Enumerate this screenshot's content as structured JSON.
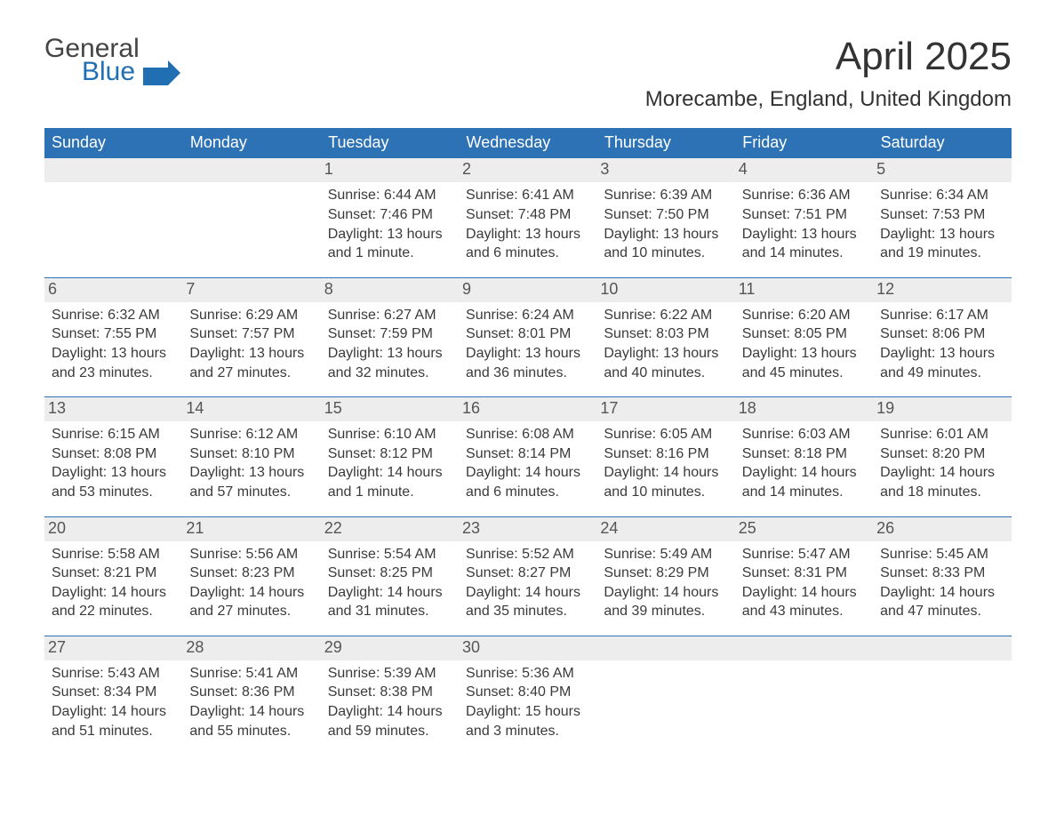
{
  "brand": {
    "word1": "General",
    "word2": "Blue",
    "color_primary": "#1f6fb2",
    "color_text": "#444"
  },
  "title": "April 2025",
  "location": "Morecambe, England, United Kingdom",
  "header_bg": "#2d72b5",
  "header_fg": "#ffffff",
  "daybar_bg": "#ededed",
  "border_color": "#2d72b5",
  "page_bg": "#ffffff",
  "text_color": "#3a3a3a",
  "weekdays": [
    "Sunday",
    "Monday",
    "Tuesday",
    "Wednesday",
    "Thursday",
    "Friday",
    "Saturday"
  ],
  "weeks": [
    [
      {
        "day": "",
        "sunrise": "",
        "sunset": "",
        "daylight": ""
      },
      {
        "day": "",
        "sunrise": "",
        "sunset": "",
        "daylight": ""
      },
      {
        "day": "1",
        "sunrise": "Sunrise: 6:44 AM",
        "sunset": "Sunset: 7:46 PM",
        "daylight": "Daylight: 13 hours and 1 minute."
      },
      {
        "day": "2",
        "sunrise": "Sunrise: 6:41 AM",
        "sunset": "Sunset: 7:48 PM",
        "daylight": "Daylight: 13 hours and 6 minutes."
      },
      {
        "day": "3",
        "sunrise": "Sunrise: 6:39 AM",
        "sunset": "Sunset: 7:50 PM",
        "daylight": "Daylight: 13 hours and 10 minutes."
      },
      {
        "day": "4",
        "sunrise": "Sunrise: 6:36 AM",
        "sunset": "Sunset: 7:51 PM",
        "daylight": "Daylight: 13 hours and 14 minutes."
      },
      {
        "day": "5",
        "sunrise": "Sunrise: 6:34 AM",
        "sunset": "Sunset: 7:53 PM",
        "daylight": "Daylight: 13 hours and 19 minutes."
      }
    ],
    [
      {
        "day": "6",
        "sunrise": "Sunrise: 6:32 AM",
        "sunset": "Sunset: 7:55 PM",
        "daylight": "Daylight: 13 hours and 23 minutes."
      },
      {
        "day": "7",
        "sunrise": "Sunrise: 6:29 AM",
        "sunset": "Sunset: 7:57 PM",
        "daylight": "Daylight: 13 hours and 27 minutes."
      },
      {
        "day": "8",
        "sunrise": "Sunrise: 6:27 AM",
        "sunset": "Sunset: 7:59 PM",
        "daylight": "Daylight: 13 hours and 32 minutes."
      },
      {
        "day": "9",
        "sunrise": "Sunrise: 6:24 AM",
        "sunset": "Sunset: 8:01 PM",
        "daylight": "Daylight: 13 hours and 36 minutes."
      },
      {
        "day": "10",
        "sunrise": "Sunrise: 6:22 AM",
        "sunset": "Sunset: 8:03 PM",
        "daylight": "Daylight: 13 hours and 40 minutes."
      },
      {
        "day": "11",
        "sunrise": "Sunrise: 6:20 AM",
        "sunset": "Sunset: 8:05 PM",
        "daylight": "Daylight: 13 hours and 45 minutes."
      },
      {
        "day": "12",
        "sunrise": "Sunrise: 6:17 AM",
        "sunset": "Sunset: 8:06 PM",
        "daylight": "Daylight: 13 hours and 49 minutes."
      }
    ],
    [
      {
        "day": "13",
        "sunrise": "Sunrise: 6:15 AM",
        "sunset": "Sunset: 8:08 PM",
        "daylight": "Daylight: 13 hours and 53 minutes."
      },
      {
        "day": "14",
        "sunrise": "Sunrise: 6:12 AM",
        "sunset": "Sunset: 8:10 PM",
        "daylight": "Daylight: 13 hours and 57 minutes."
      },
      {
        "day": "15",
        "sunrise": "Sunrise: 6:10 AM",
        "sunset": "Sunset: 8:12 PM",
        "daylight": "Daylight: 14 hours and 1 minute."
      },
      {
        "day": "16",
        "sunrise": "Sunrise: 6:08 AM",
        "sunset": "Sunset: 8:14 PM",
        "daylight": "Daylight: 14 hours and 6 minutes."
      },
      {
        "day": "17",
        "sunrise": "Sunrise: 6:05 AM",
        "sunset": "Sunset: 8:16 PM",
        "daylight": "Daylight: 14 hours and 10 minutes."
      },
      {
        "day": "18",
        "sunrise": "Sunrise: 6:03 AM",
        "sunset": "Sunset: 8:18 PM",
        "daylight": "Daylight: 14 hours and 14 minutes."
      },
      {
        "day": "19",
        "sunrise": "Sunrise: 6:01 AM",
        "sunset": "Sunset: 8:20 PM",
        "daylight": "Daylight: 14 hours and 18 minutes."
      }
    ],
    [
      {
        "day": "20",
        "sunrise": "Sunrise: 5:58 AM",
        "sunset": "Sunset: 8:21 PM",
        "daylight": "Daylight: 14 hours and 22 minutes."
      },
      {
        "day": "21",
        "sunrise": "Sunrise: 5:56 AM",
        "sunset": "Sunset: 8:23 PM",
        "daylight": "Daylight: 14 hours and 27 minutes."
      },
      {
        "day": "22",
        "sunrise": "Sunrise: 5:54 AM",
        "sunset": "Sunset: 8:25 PM",
        "daylight": "Daylight: 14 hours and 31 minutes."
      },
      {
        "day": "23",
        "sunrise": "Sunrise: 5:52 AM",
        "sunset": "Sunset: 8:27 PM",
        "daylight": "Daylight: 14 hours and 35 minutes."
      },
      {
        "day": "24",
        "sunrise": "Sunrise: 5:49 AM",
        "sunset": "Sunset: 8:29 PM",
        "daylight": "Daylight: 14 hours and 39 minutes."
      },
      {
        "day": "25",
        "sunrise": "Sunrise: 5:47 AM",
        "sunset": "Sunset: 8:31 PM",
        "daylight": "Daylight: 14 hours and 43 minutes."
      },
      {
        "day": "26",
        "sunrise": "Sunrise: 5:45 AM",
        "sunset": "Sunset: 8:33 PM",
        "daylight": "Daylight: 14 hours and 47 minutes."
      }
    ],
    [
      {
        "day": "27",
        "sunrise": "Sunrise: 5:43 AM",
        "sunset": "Sunset: 8:34 PM",
        "daylight": "Daylight: 14 hours and 51 minutes."
      },
      {
        "day": "28",
        "sunrise": "Sunrise: 5:41 AM",
        "sunset": "Sunset: 8:36 PM",
        "daylight": "Daylight: 14 hours and 55 minutes."
      },
      {
        "day": "29",
        "sunrise": "Sunrise: 5:39 AM",
        "sunset": "Sunset: 8:38 PM",
        "daylight": "Daylight: 14 hours and 59 minutes."
      },
      {
        "day": "30",
        "sunrise": "Sunrise: 5:36 AM",
        "sunset": "Sunset: 8:40 PM",
        "daylight": "Daylight: 15 hours and 3 minutes."
      },
      {
        "day": "",
        "sunrise": "",
        "sunset": "",
        "daylight": ""
      },
      {
        "day": "",
        "sunrise": "",
        "sunset": "",
        "daylight": ""
      },
      {
        "day": "",
        "sunrise": "",
        "sunset": "",
        "daylight": ""
      }
    ]
  ]
}
